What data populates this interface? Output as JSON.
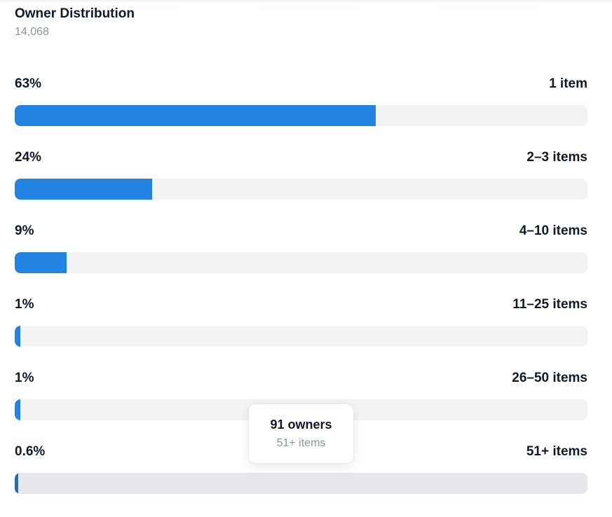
{
  "header": {
    "title": "Owner Distribution",
    "total": "14,068"
  },
  "rows": [
    {
      "percent_label": "63%",
      "range_label": "1 item",
      "fraction": 0.63
    },
    {
      "percent_label": "24%",
      "range_label": "2–3 items",
      "fraction": 0.24
    },
    {
      "percent_label": "9%",
      "range_label": "4–10 items",
      "fraction": 0.09
    },
    {
      "percent_label": "1%",
      "range_label": "11–25 items",
      "fraction": 0.01
    },
    {
      "percent_label": "1%",
      "range_label": "26–50 items",
      "fraction": 0.01
    },
    {
      "percent_label": "0.6%",
      "range_label": "51+ items",
      "fraction": 0.006
    }
  ],
  "tooltip": {
    "owners": "91 owners",
    "range": "51+ items"
  },
  "colors": {
    "bar_fill": "#2283e2",
    "bar_fill_hover": "#1b6dbd",
    "track": "#f2f3f5",
    "track_hover": "#e5e7eb"
  }
}
